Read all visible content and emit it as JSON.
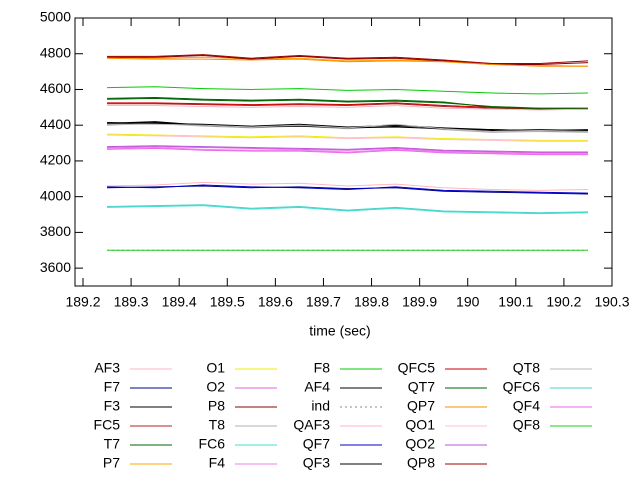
{
  "chart_data": {
    "type": "line",
    "x_label": "time (sec)",
    "x": [
      189.25,
      189.35,
      189.45,
      189.55,
      189.65,
      189.75,
      189.85,
      189.95,
      190.05,
      190.15,
      190.25
    ],
    "xlim": [
      189.2,
      190.3
    ],
    "xticks": [
      189.2,
      189.3,
      189.4,
      189.5,
      189.6,
      189.7,
      189.8,
      189.9,
      190,
      190.1,
      190.2,
      190.3
    ],
    "ylim": [
      3500,
      5000
    ],
    "yticks": [
      3600,
      3800,
      4000,
      4200,
      4400,
      4600,
      4800,
      5000
    ],
    "legend_columns": 5,
    "series": [
      {
        "name": "AF3",
        "color": "#ffb6c1",
        "values": [
          4060,
          4065,
          4080,
          4070,
          4075,
          4060,
          4070,
          4050,
          4040,
          4035,
          4040
        ]
      },
      {
        "name": "F7",
        "color": "#00008b",
        "values": [
          4050,
          4055,
          4060,
          4050,
          4055,
          4045,
          4050,
          4030,
          4025,
          4020,
          4015
        ]
      },
      {
        "name": "F3",
        "color": "#000000",
        "values": [
          4410,
          4420,
          4400,
          4390,
          4400,
          4385,
          4395,
          4380,
          4370,
          4375,
          4370
        ]
      },
      {
        "name": "FC5",
        "color": "#b22222",
        "values": [
          4520,
          4520,
          4515,
          4510,
          4515,
          4510,
          4520,
          4505,
          4495,
          4490,
          4490
        ]
      },
      {
        "name": "T7",
        "color": "#006400",
        "values": [
          4550,
          4555,
          4545,
          4540,
          4545,
          4535,
          4540,
          4530,
          4500,
          4490,
          4490
        ]
      },
      {
        "name": "P7",
        "color": "#ffa500",
        "values": [
          4780,
          4775,
          4780,
          4770,
          4775,
          4760,
          4765,
          4760,
          4745,
          4735,
          4730
        ]
      },
      {
        "name": "O1",
        "color": "#eeee00",
        "values": [
          4350,
          4345,
          4340,
          4335,
          4340,
          4330,
          4335,
          4325,
          4320,
          4315,
          4315
        ]
      },
      {
        "name": "O2",
        "color": "#dd66dd",
        "values": [
          4275,
          4280,
          4275,
          4270,
          4265,
          4260,
          4270,
          4255,
          4250,
          4245,
          4245
        ]
      },
      {
        "name": "P8",
        "color": "#8b0000",
        "values": [
          4780,
          4780,
          4790,
          4770,
          4785,
          4770,
          4775,
          4760,
          4740,
          4740,
          4750
        ]
      },
      {
        "name": "T8",
        "color": "#b0b0b0",
        "values": [
          4400,
          4410,
          4395,
          4385,
          4395,
          4380,
          4400,
          4375,
          4360,
          4365,
          4360
        ]
      },
      {
        "name": "FC6",
        "color": "#40e0d0",
        "values": [
          3940,
          3945,
          3950,
          3930,
          3940,
          3920,
          3935,
          3915,
          3910,
          3905,
          3910
        ]
      },
      {
        "name": "F4",
        "color": "#ee82ee",
        "values": [
          4270,
          4275,
          4265,
          4260,
          4260,
          4250,
          4265,
          4250,
          4245,
          4240,
          4240
        ]
      },
      {
        "name": "F8",
        "color": "#00cc00",
        "values": [
          4610,
          4615,
          4605,
          4600,
          4605,
          4595,
          4600,
          4590,
          4580,
          4575,
          4580
        ]
      },
      {
        "name": "AF4",
        "color": "#000000",
        "values": [
          4405,
          4415,
          4400,
          4390,
          4395,
          4385,
          4390,
          4380,
          4375,
          4370,
          4365
        ]
      },
      {
        "name": "ind",
        "color": "#888888",
        "dashed": true,
        "values": [
          3700,
          3700,
          3700,
          3700,
          3700,
          3700,
          3700,
          3700,
          3700,
          3700,
          3700
        ]
      },
      {
        "name": "QAF3",
        "color": "#ffb6c1",
        "values": [
          4510,
          4510,
          4505,
          4500,
          4505,
          4500,
          4510,
          4495,
          4490,
          4485,
          4490
        ]
      },
      {
        "name": "QF7",
        "color": "#0000cc",
        "values": [
          4055,
          4050,
          4065,
          4055,
          4050,
          4040,
          4055,
          4035,
          4030,
          4025,
          4020
        ]
      },
      {
        "name": "QF3",
        "color": "#000000",
        "values": [
          4415,
          4410,
          4405,
          4395,
          4405,
          4390,
          4400,
          4385,
          4375,
          4370,
          4375
        ]
      },
      {
        "name": "QFC5",
        "color": "#cc0000",
        "values": [
          4525,
          4525,
          4520,
          4515,
          4520,
          4515,
          4525,
          4510,
          4500,
          4495,
          4495
        ]
      },
      {
        "name": "QT7",
        "color": "#006400",
        "values": [
          4545,
          4550,
          4540,
          4535,
          4540,
          4530,
          4535,
          4525,
          4505,
          4495,
          4495
        ]
      },
      {
        "name": "QP7",
        "color": "#ff8c00",
        "values": [
          4775,
          4770,
          4770,
          4765,
          4770,
          4755,
          4760,
          4755,
          4740,
          4730,
          4730
        ]
      },
      {
        "name": "QO1",
        "color": "#ffc0cb",
        "values": [
          4345,
          4340,
          4335,
          4330,
          4335,
          4325,
          4330,
          4320,
          4315,
          4310,
          4310
        ]
      },
      {
        "name": "QO2",
        "color": "#bb55dd",
        "values": [
          4280,
          4285,
          4280,
          4275,
          4270,
          4265,
          4275,
          4260,
          4255,
          4250,
          4250
        ]
      },
      {
        "name": "QP8",
        "color": "#a00000",
        "values": [
          4785,
          4785,
          4795,
          4775,
          4790,
          4775,
          4780,
          4765,
          4745,
          4745,
          4760
        ]
      },
      {
        "name": "QT8",
        "color": "#b8b8b8",
        "values": [
          4405,
          4405,
          4400,
          4390,
          4400,
          4385,
          4405,
          4380,
          4365,
          4370,
          4365
        ]
      },
      {
        "name": "QFC6",
        "color": "#48d1cc",
        "values": [
          3945,
          3950,
          3955,
          3935,
          3945,
          3925,
          3940,
          3920,
          3915,
          3910,
          3915
        ]
      },
      {
        "name": "QF4",
        "color": "#ee66ee",
        "values": [
          4265,
          4270,
          4260,
          4255,
          4255,
          4245,
          4260,
          4245,
          4240,
          4235,
          4235
        ]
      },
      {
        "name": "QF8",
        "color": "#22cc22",
        "values": [
          3700,
          3700,
          3700,
          3700,
          3700,
          3700,
          3700,
          3700,
          3700,
          3700,
          3700
        ]
      }
    ]
  }
}
